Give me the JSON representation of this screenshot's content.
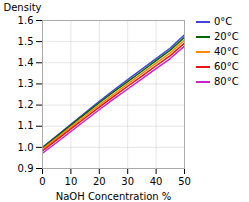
{
  "chart_data": {
    "type": "line",
    "xlabel": "NaOH Concentration %",
    "ylabel": "Density",
    "x": [
      0,
      5,
      10,
      15,
      20,
      25,
      30,
      35,
      40,
      45,
      50
    ],
    "series": [
      {
        "name": "0°C",
        "color": "#4444dd",
        "values": [
          1.0,
          1.054,
          1.109,
          1.163,
          1.218,
          1.27,
          1.32,
          1.37,
          1.42,
          1.47,
          1.532
        ]
      },
      {
        "name": "20°C",
        "color": "#006600",
        "values": [
          0.998,
          1.051,
          1.105,
          1.158,
          1.211,
          1.262,
          1.311,
          1.36,
          1.41,
          1.46,
          1.52
        ]
      },
      {
        "name": "40°C",
        "color": "#ff8800",
        "values": [
          0.992,
          1.044,
          1.097,
          1.149,
          1.201,
          1.251,
          1.3,
          1.349,
          1.398,
          1.447,
          1.507
        ]
      },
      {
        "name": "60°C",
        "color": "#ee1111",
        "values": [
          0.983,
          1.035,
          1.087,
          1.139,
          1.19,
          1.24,
          1.289,
          1.337,
          1.386,
          1.434,
          1.493
        ]
      },
      {
        "name": "80°C",
        "color": "#cc22cc",
        "values": [
          0.972,
          1.023,
          1.075,
          1.127,
          1.178,
          1.228,
          1.276,
          1.324,
          1.372,
          1.42,
          1.479
        ]
      }
    ],
    "xlim": [
      0,
      50
    ],
    "ylim": [
      0.9,
      1.6
    ],
    "xticks": [
      0,
      10,
      20,
      30,
      40,
      50
    ],
    "yticks": [
      0.9,
      {
        "value": 1.0,
        "label": "1.0"
      },
      1.1,
      1.2,
      1.3,
      1.4,
      1.5,
      1.6
    ],
    "grid": true,
    "legend": "right"
  }
}
